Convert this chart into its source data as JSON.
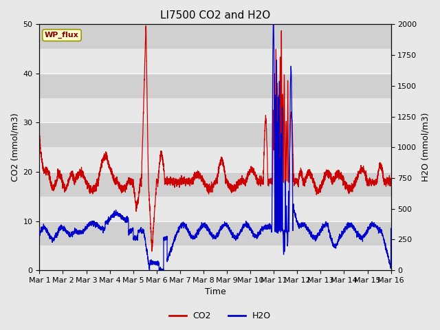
{
  "title": "LI7500 CO2 and H2O",
  "xlabel": "Time",
  "ylabel_left": "CO2 (mmol/m3)",
  "ylabel_right": "H2O (mmol/m3)",
  "xlim": [
    0,
    15
  ],
  "ylim_left": [
    0,
    50
  ],
  "ylim_right": [
    0,
    2000
  ],
  "xtick_labels": [
    "Mar 1",
    "Mar 2",
    "Mar 3",
    "Mar 4",
    "Mar 5",
    "Mar 6",
    "Mar 7",
    "Mar 8",
    "Mar 9",
    "Mar 10",
    "Mar 11",
    "Mar 12",
    "Mar 13",
    "Mar 14",
    "Mar 15",
    "Mar 16"
  ],
  "xtick_positions": [
    0,
    1,
    2,
    3,
    4,
    5,
    6,
    7,
    8,
    9,
    10,
    11,
    12,
    13,
    14,
    15
  ],
  "co2_color": "#cc0000",
  "h2o_color": "#0000cc",
  "bg_color": "#e8e8e8",
  "plot_bg_color": "#dcdcdc",
  "band_color_light": "#e8e8e8",
  "band_color_dark": "#d0d0d0",
  "annotation_text": "WP_flux",
  "annotation_color": "#800000",
  "annotation_bg": "#ffffcc",
  "legend_co2": "CO2",
  "legend_h2o": "H2O",
  "title_fontsize": 11,
  "axis_fontsize": 9,
  "tick_fontsize": 8,
  "figsize": [
    6.4,
    4.8
  ],
  "dpi": 100
}
